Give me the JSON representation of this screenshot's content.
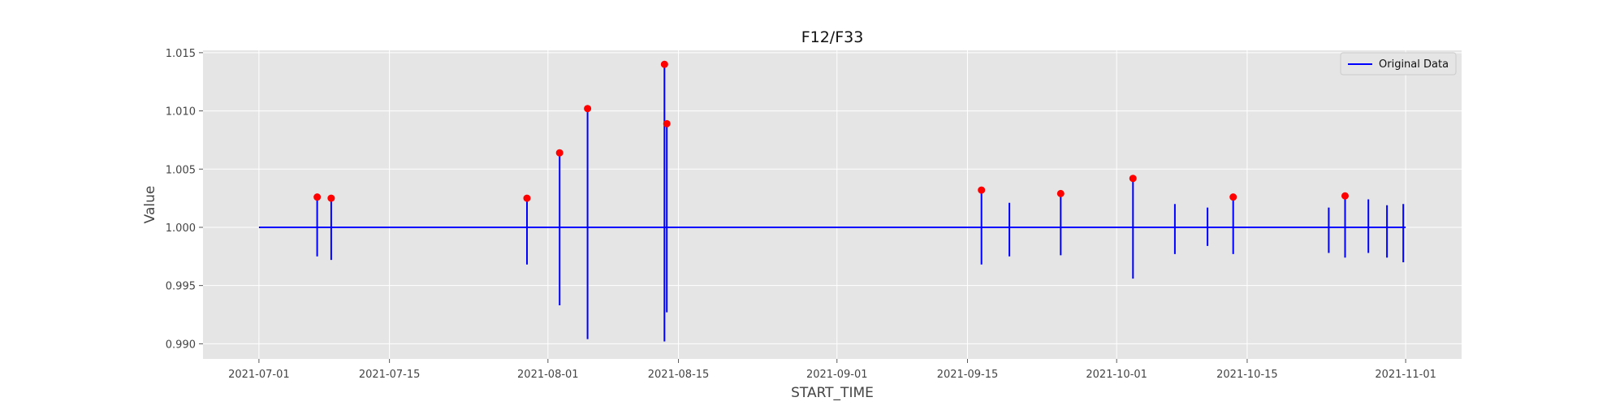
{
  "chart_data": {
    "type": "line",
    "title": "F12/F33",
    "xlabel": "START_TIME",
    "ylabel": "Value",
    "x_axis_type": "date",
    "xlim": [
      "2021-06-25",
      "2021-11-07"
    ],
    "ylim": [
      0.9887,
      1.0152
    ],
    "x_ticks": [
      "2021-07-01",
      "2021-07-15",
      "2021-08-01",
      "2021-08-15",
      "2021-09-01",
      "2021-09-15",
      "2021-10-01",
      "2021-10-15",
      "2021-11-01"
    ],
    "y_ticks": [
      0.99,
      0.995,
      1.0,
      1.005,
      1.01,
      1.015
    ],
    "y_tick_labels": [
      "0.990",
      "0.995",
      "1.000",
      "1.005",
      "1.010",
      "1.015"
    ],
    "grid": true,
    "legend_position": "top-right",
    "baseline": 1.0,
    "series": [
      {
        "name": "Original Data",
        "color": "#0000ff",
        "range": [
          "2021-07-01",
          "2021-11-01"
        ],
        "spikes": [
          {
            "x": "2021-07-07 06:00",
            "low": 0.9975,
            "high": 1.0026
          },
          {
            "x": "2021-07-08 18:00",
            "low": 0.9972,
            "high": 1.0025
          },
          {
            "x": "2021-07-29 18:00",
            "low": 0.9968,
            "high": 1.0025
          },
          {
            "x": "2021-08-02 06:00",
            "low": 0.9933,
            "high": 1.0064
          },
          {
            "x": "2021-08-05 06:00",
            "low": 0.9904,
            "high": 1.0102
          },
          {
            "x": "2021-08-13 12:00",
            "low": 0.9902,
            "high": 1.014
          },
          {
            "x": "2021-08-13 18:00",
            "low": 0.9927,
            "high": 1.0089
          },
          {
            "x": "2021-09-16 12:00",
            "low": 0.9968,
            "high": 1.0032
          },
          {
            "x": "2021-09-19 12:00",
            "low": 0.9975,
            "high": 1.0021
          },
          {
            "x": "2021-09-25 00:00",
            "low": 0.9976,
            "high": 1.0029
          },
          {
            "x": "2021-10-02 18:00",
            "low": 0.9956,
            "high": 1.0042
          },
          {
            "x": "2021-10-07 06:00",
            "low": 0.9977,
            "high": 1.002
          },
          {
            "x": "2021-10-10 18:00",
            "low": 0.9984,
            "high": 1.0017
          },
          {
            "x": "2021-10-13 12:00",
            "low": 0.9977,
            "high": 1.0026
          },
          {
            "x": "2021-10-23 18:00",
            "low": 0.9978,
            "high": 1.0017
          },
          {
            "x": "2021-10-25 12:00",
            "low": 0.9974,
            "high": 1.0027
          },
          {
            "x": "2021-10-28 00:00",
            "low": 0.9978,
            "high": 1.0024
          },
          {
            "x": "2021-10-30 00:00",
            "low": 0.9974,
            "high": 1.0019
          },
          {
            "x": "2021-10-31 18:00",
            "low": 0.997,
            "high": 1.002
          }
        ]
      }
    ],
    "highlight_points": {
      "color": "#ff0000",
      "points": [
        {
          "x": "2021-07-07 06:00",
          "y": 1.0026
        },
        {
          "x": "2021-07-08 18:00",
          "y": 1.0025
        },
        {
          "x": "2021-07-29 18:00",
          "y": 1.0025
        },
        {
          "x": "2021-08-02 06:00",
          "y": 1.0064
        },
        {
          "x": "2021-08-05 06:00",
          "y": 1.0102
        },
        {
          "x": "2021-08-13 12:00",
          "y": 1.014
        },
        {
          "x": "2021-08-13 18:00",
          "y": 1.0089
        },
        {
          "x": "2021-09-16 12:00",
          "y": 1.0032
        },
        {
          "x": "2021-09-25 00:00",
          "y": 1.0029
        },
        {
          "x": "2021-10-02 18:00",
          "y": 1.0042
        },
        {
          "x": "2021-10-13 12:00",
          "y": 1.0026
        },
        {
          "x": "2021-10-25 12:00",
          "y": 1.0027
        }
      ]
    },
    "colors": {
      "plot_background": "#e5e5e5",
      "grid": "#ffffff",
      "line": "#0000ff",
      "marker": "#ff0000"
    }
  }
}
